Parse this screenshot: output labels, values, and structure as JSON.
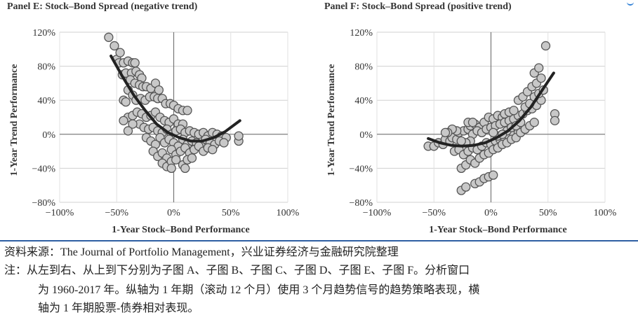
{
  "charts": [
    {
      "id": "E",
      "title": "Panel E: Stock–Bond Spread (negative trend)",
      "xlabel": "1-Year Stock–Bond Performance",
      "ylabel": "1-Year Trend Performance",
      "xticks": [
        "−100%",
        "−50%",
        "0%",
        "50%",
        "100%"
      ],
      "yticks": [
        "120%",
        "80%",
        "40%",
        "0%",
        "−40%",
        "−80%"
      ]
    },
    {
      "id": "F",
      "title": "Panel F: Stock–Bond Spread (positive trend)",
      "xlabel": "1-Year Stock–Bond Performance",
      "ylabel": "1-Year Trend Performance",
      "xticks": [
        "−100%",
        "−50%",
        "0%",
        "50%",
        "100%"
      ],
      "yticks": [
        "120%",
        "80%",
        "40%",
        "0%",
        "−40%",
        "−80%"
      ]
    }
  ],
  "chart_data": [
    {
      "type": "scatter",
      "title": "Panel E: Stock–Bond Spread (negative trend)",
      "xlabel": "1-Year Stock–Bond Performance",
      "ylabel": "1-Year Trend Performance",
      "xlim": [
        -100,
        100
      ],
      "ylim": [
        -80,
        120
      ],
      "grid": true,
      "point_color": "#c8c8c8",
      "point_edge": "#555555",
      "fit_color": "#222222",
      "points": [
        [
          -57,
          114
        ],
        [
          -52,
          104
        ],
        [
          -50,
          88
        ],
        [
          -47,
          96
        ],
        [
          -48,
          84
        ],
        [
          -44,
          84
        ],
        [
          -40,
          86
        ],
        [
          -36,
          84
        ],
        [
          -34,
          84
        ],
        [
          -45,
          70
        ],
        [
          -42,
          72
        ],
        [
          -37,
          72
        ],
        [
          -33,
          74
        ],
        [
          -30,
          70
        ],
        [
          -28,
          66
        ],
        [
          -38,
          64
        ],
        [
          -34,
          60
        ],
        [
          -30,
          58
        ],
        [
          -27,
          56
        ],
        [
          -24,
          56
        ],
        [
          -20,
          54
        ],
        [
          -16,
          60
        ],
        [
          -13,
          52
        ],
        [
          -40,
          52
        ],
        [
          -36,
          46
        ],
        [
          -44,
          40
        ],
        [
          -42,
          38
        ],
        [
          -33,
          40
        ],
        [
          -29,
          42
        ],
        [
          -25,
          40
        ],
        [
          -21,
          44
        ],
        [
          -17,
          44
        ],
        [
          -14,
          42
        ],
        [
          -10,
          42
        ],
        [
          -7,
          36
        ],
        [
          -3,
          36
        ],
        [
          0,
          34
        ],
        [
          4,
          30
        ],
        [
          8,
          28
        ],
        [
          12,
          28
        ],
        [
          -40,
          20
        ],
        [
          -36,
          22
        ],
        [
          -32,
          26
        ],
        [
          -28,
          24
        ],
        [
          -24,
          20
        ],
        [
          -20,
          22
        ],
        [
          -16,
          26
        ],
        [
          -12,
          20
        ],
        [
          -8,
          16
        ],
        [
          -4,
          14
        ],
        [
          0,
          18
        ],
        [
          4,
          12
        ],
        [
          8,
          12
        ],
        [
          -30,
          12
        ],
        [
          -26,
          8
        ],
        [
          -22,
          6
        ],
        [
          -18,
          8
        ],
        [
          -14,
          4
        ],
        [
          -10,
          2
        ],
        [
          -6,
          6
        ],
        [
          -2,
          0
        ],
        [
          2,
          4
        ],
        [
          6,
          6
        ],
        [
          10,
          2
        ],
        [
          14,
          4
        ],
        [
          18,
          2
        ],
        [
          22,
          0
        ],
        [
          26,
          2
        ],
        [
          30,
          -2
        ],
        [
          34,
          2
        ],
        [
          38,
          0
        ],
        [
          42,
          -2
        ],
        [
          46,
          -4
        ],
        [
          -24,
          -4
        ],
        [
          -20,
          -8
        ],
        [
          -16,
          -12
        ],
        [
          -12,
          -4
        ],
        [
          -8,
          -10
        ],
        [
          -4,
          -6
        ],
        [
          0,
          -10
        ],
        [
          4,
          -14
        ],
        [
          8,
          -6
        ],
        [
          12,
          -12
        ],
        [
          16,
          -8
        ],
        [
          20,
          -10
        ],
        [
          24,
          -14
        ],
        [
          28,
          -6
        ],
        [
          32,
          -10
        ],
        [
          36,
          -12
        ],
        [
          40,
          -8
        ],
        [
          44,
          -10
        ],
        [
          -18,
          -20
        ],
        [
          -14,
          -26
        ],
        [
          -10,
          -22
        ],
        [
          -6,
          -28
        ],
        [
          -2,
          -18
        ],
        [
          2,
          -24
        ],
        [
          6,
          -20
        ],
        [
          10,
          -16
        ],
        [
          14,
          -22
        ],
        [
          18,
          -18
        ],
        [
          22,
          -14
        ],
        [
          26,
          -20
        ],
        [
          30,
          -16
        ],
        [
          34,
          -18
        ],
        [
          -10,
          -34
        ],
        [
          -6,
          -38
        ],
        [
          -2,
          -32
        ],
        [
          2,
          -30
        ],
        [
          8,
          -36
        ],
        [
          12,
          -30
        ],
        [
          16,
          -28
        ],
        [
          -2,
          -40
        ],
        [
          10,
          -40
        ],
        [
          57,
          -8
        ],
        [
          57,
          -2
        ],
        [
          -36,
          12
        ],
        [
          -40,
          4
        ],
        [
          -44,
          16
        ]
      ],
      "fit": [
        [
          -55,
          92
        ],
        [
          -45,
          68
        ],
        [
          -35,
          46
        ],
        [
          -25,
          28
        ],
        [
          -15,
          12
        ],
        [
          -5,
          2
        ],
        [
          5,
          -4
        ],
        [
          15,
          -8
        ],
        [
          25,
          -8
        ],
        [
          35,
          -4
        ],
        [
          45,
          3
        ],
        [
          55,
          13
        ],
        [
          58,
          16
        ]
      ]
    },
    {
      "type": "scatter",
      "title": "Panel F: Stock–Bond Spread (positive trend)",
      "xlabel": "1-Year Stock–Bond Performance",
      "ylabel": "1-Year Trend Performance",
      "xlim": [
        -100,
        100
      ],
      "ylim": [
        -80,
        120
      ],
      "grid": true,
      "point_color": "#c8c8c8",
      "point_edge": "#555555",
      "fit_color": "#222222",
      "points": [
        [
          -55,
          -14
        ],
        [
          -50,
          -14
        ],
        [
          -46,
          -10
        ],
        [
          -42,
          -12
        ],
        [
          -40,
          -6
        ],
        [
          -36,
          -8
        ],
        [
          -34,
          -4
        ],
        [
          -30,
          -6
        ],
        [
          -28,
          2
        ],
        [
          -24,
          4
        ],
        [
          -20,
          6
        ],
        [
          -18,
          10
        ],
        [
          -14,
          12
        ],
        [
          -10,
          8
        ],
        [
          -6,
          14
        ],
        [
          -2,
          20
        ],
        [
          2,
          18
        ],
        [
          6,
          22
        ],
        [
          10,
          20
        ],
        [
          -32,
          -20
        ],
        [
          -28,
          -18
        ],
        [
          -24,
          -24
        ],
        [
          -20,
          -20
        ],
        [
          -16,
          -16
        ],
        [
          -12,
          -18
        ],
        [
          -8,
          -14
        ],
        [
          -4,
          -10
        ],
        [
          0,
          -12
        ],
        [
          4,
          -8
        ],
        [
          8,
          -6
        ],
        [
          12,
          -4
        ],
        [
          16,
          -2
        ],
        [
          20,
          0
        ],
        [
          24,
          2
        ],
        [
          28,
          6
        ],
        [
          -26,
          -40
        ],
        [
          -22,
          -36
        ],
        [
          -18,
          -30
        ],
        [
          -14,
          -34
        ],
        [
          -10,
          -28
        ],
        [
          -6,
          -24
        ],
        [
          -2,
          -22
        ],
        [
          2,
          -18
        ],
        [
          6,
          -16
        ],
        [
          10,
          -12
        ],
        [
          14,
          -10
        ],
        [
          18,
          -6
        ],
        [
          22,
          -4
        ],
        [
          26,
          2
        ],
        [
          30,
          6
        ],
        [
          34,
          10
        ],
        [
          38,
          14
        ],
        [
          -14,
          -58
        ],
        [
          -10,
          -56
        ],
        [
          -6,
          -52
        ],
        [
          -2,
          -50
        ],
        [
          2,
          -48
        ],
        [
          -26,
          -66
        ],
        [
          -22,
          -62
        ],
        [
          -16,
          0
        ],
        [
          -12,
          4
        ],
        [
          -8,
          2
        ],
        [
          -4,
          6
        ],
        [
          0,
          8
        ],
        [
          4,
          10
        ],
        [
          8,
          12
        ],
        [
          12,
          14
        ],
        [
          16,
          16
        ],
        [
          20,
          18
        ],
        [
          24,
          22
        ],
        [
          28,
          24
        ],
        [
          32,
          28
        ],
        [
          36,
          30
        ],
        [
          40,
          34
        ],
        [
          44,
          40
        ],
        [
          24,
          40
        ],
        [
          28,
          44
        ],
        [
          32,
          50
        ],
        [
          36,
          56
        ],
        [
          40,
          60
        ],
        [
          44,
          66
        ],
        [
          38,
          72
        ],
        [
          42,
          78
        ],
        [
          30,
          32
        ],
        [
          34,
          36
        ],
        [
          38,
          44
        ],
        [
          42,
          48
        ],
        [
          46,
          52
        ],
        [
          48,
          104
        ],
        [
          56,
          24
        ],
        [
          56,
          16
        ],
        [
          -30,
          4
        ],
        [
          -34,
          6
        ],
        [
          -38,
          2
        ],
        [
          -18,
          -8
        ],
        [
          -22,
          -10
        ],
        [
          -26,
          -8
        ],
        [
          14,
          4
        ],
        [
          18,
          8
        ],
        [
          22,
          10
        ],
        [
          26,
          14
        ],
        [
          6,
          -2
        ],
        [
          10,
          0
        ],
        [
          2,
          2
        ],
        [
          -40,
          2
        ],
        [
          -20,
          14
        ],
        [
          -16,
          14
        ],
        [
          12,
          24
        ],
        [
          16,
          26
        ],
        [
          20,
          28
        ]
      ],
      "fit": [
        [
          -55,
          -5
        ],
        [
          -45,
          -10
        ],
        [
          -35,
          -13
        ],
        [
          -25,
          -14
        ],
        [
          -15,
          -13
        ],
        [
          -5,
          -10
        ],
        [
          5,
          -4
        ],
        [
          15,
          4
        ],
        [
          25,
          16
        ],
        [
          35,
          32
        ],
        [
          45,
          52
        ],
        [
          55,
          72
        ]
      ]
    }
  ],
  "caption": {
    "source": "资料来源：The Journal of Portfolio Management，兴业证券经济与金融研究院整理",
    "note1": "注：从左到右、从上到下分别为子图 A、子图 B、子图 C、子图 D、子图 E、子图 F。分析窗口",
    "note2": "为 1960-2017 年。纵轴为 1 年期（滚动 12 个月）使用 3 个月趋势信号的趋势策略表现，横",
    "note3": "轴为 1 年期股票-债券相对表现。"
  }
}
